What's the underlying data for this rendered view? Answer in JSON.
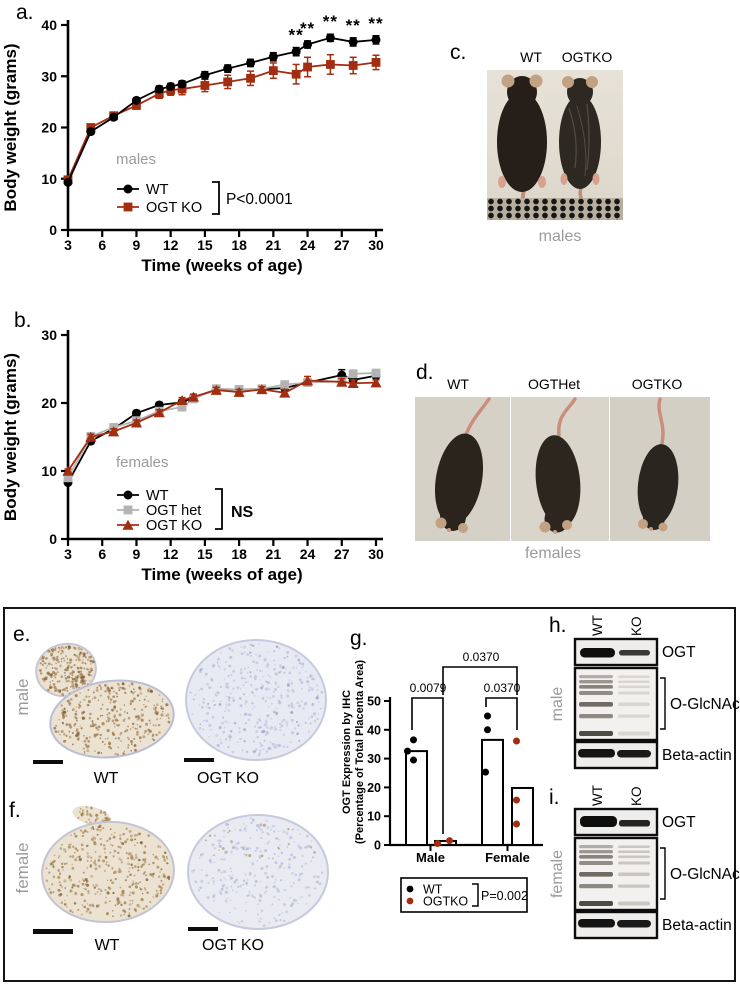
{
  "panel_labels": {
    "a": "a.",
    "b": "b.",
    "c": "c.",
    "d": "d.",
    "e": "e.",
    "f": "f.",
    "g": "g.",
    "h": "h.",
    "i": "i."
  },
  "colors": {
    "black": "#000000",
    "ko_red": "#A22D10",
    "het_gray": "#B3B3B3",
    "annotation_gray": "#9B9B9B"
  },
  "chart_data": [
    {
      "id": "a",
      "type": "line",
      "group_note": "males",
      "xlabel": "Time (weeks of age)",
      "ylabel": "Body weight (grams)",
      "xlim": [
        3,
        30
      ],
      "ylim": [
        0,
        40
      ],
      "xticks": [
        3,
        6,
        9,
        12,
        15,
        18,
        21,
        24,
        27,
        30
      ],
      "yticks": [
        0,
        10,
        20,
        30,
        40
      ],
      "x": [
        3,
        5,
        7,
        9,
        11,
        12,
        13,
        15,
        17,
        19,
        21,
        23,
        24,
        26,
        28,
        30
      ],
      "series": [
        {
          "name": "WT",
          "marker": "circle",
          "color": "#000000",
          "values": [
            9.3,
            19.2,
            22.0,
            25.3,
            27.5,
            28.0,
            28.5,
            30.2,
            31.5,
            32.6,
            33.8,
            34.8,
            36.2,
            37.5,
            36.7,
            37.1
          ],
          "err": [
            0.4,
            0.5,
            0.5,
            0.5,
            0.6,
            0.6,
            0.6,
            0.7,
            0.7,
            0.7,
            0.8,
            0.8,
            0.7,
            0.7,
            0.8,
            0.8
          ]
        },
        {
          "name": "OGT KO",
          "marker": "square",
          "color": "#A22D10",
          "values": [
            9.8,
            20.0,
            22.3,
            24.3,
            26.6,
            27.3,
            27.5,
            28.2,
            28.9,
            29.6,
            31.1,
            30.4,
            31.8,
            32.3,
            32.1,
            32.7
          ],
          "err": [
            0.4,
            0.6,
            0.6,
            0.7,
            0.9,
            1.0,
            1.1,
            1.2,
            1.3,
            1.4,
            1.5,
            1.9,
            1.9,
            1.9,
            1.6,
            1.4
          ]
        }
      ],
      "significance": {
        "symbol": "**",
        "weeks": [
          23,
          24,
          26,
          28,
          30
        ]
      },
      "comparison_label": "P<0.0001"
    },
    {
      "id": "b",
      "type": "line",
      "group_note": "females",
      "xlabel": "Time (weeks of age)",
      "ylabel": "Body weight (grams)",
      "xlim": [
        3,
        30
      ],
      "ylim": [
        0,
        30
      ],
      "xticks": [
        3,
        6,
        9,
        12,
        15,
        18,
        21,
        24,
        27,
        30
      ],
      "yticks": [
        0,
        10,
        20,
        30
      ],
      "x": [
        3,
        5,
        7,
        9,
        11,
        13,
        14,
        16,
        18,
        20,
        22,
        24,
        27,
        28,
        30
      ],
      "series": [
        {
          "name": "WT",
          "marker": "circle",
          "color": "#000000",
          "values": [
            8.3,
            14.4,
            16.2,
            18.5,
            19.7,
            20.1,
            20.8,
            22.0,
            22.0,
            22.0,
            22.2,
            23.0,
            24.1,
            23.4,
            24.0
          ],
          "err": [
            0.3,
            0.4,
            0.4,
            0.4,
            0.4,
            0.4,
            0.4,
            0.4,
            0.4,
            0.4,
            0.4,
            0.5,
            0.8,
            0.5,
            0.5
          ]
        },
        {
          "name": "OGT het",
          "marker": "square",
          "color": "#B3B3B3",
          "values": [
            9.0,
            15.1,
            16.4,
            17.4,
            18.8,
            19.4,
            20.6,
            22.1,
            22.0,
            22.1,
            22.7,
            23.0,
            23.2,
            24.3,
            24.4
          ],
          "err": [
            0.3,
            0.3,
            0.3,
            0.4,
            0.4,
            0.4,
            0.4,
            0.4,
            0.4,
            0.4,
            0.4,
            0.5,
            0.5,
            0.5,
            0.5
          ]
        },
        {
          "name": "OGT KO",
          "marker": "triangle",
          "color": "#A22D10",
          "values": [
            10.0,
            15.0,
            15.8,
            17.1,
            18.6,
            20.4,
            20.9,
            21.9,
            21.6,
            22.0,
            21.5,
            23.3,
            23.1,
            22.9,
            23.0
          ],
          "err": [
            0.3,
            0.4,
            0.4,
            0.4,
            0.4,
            0.4,
            0.4,
            0.4,
            0.4,
            0.4,
            0.5,
            0.6,
            0.5,
            0.5,
            0.4
          ]
        }
      ],
      "comparison_label": "NS"
    },
    {
      "id": "g",
      "type": "bar",
      "ylabel_line1": "OGT Expression by IHC",
      "ylabel_line2": "(Percentage of Total Placenta Area)",
      "ylim": [
        0,
        50
      ],
      "yticks": [
        0,
        10,
        20,
        30,
        40,
        50
      ],
      "categories": [
        "Male",
        "Female"
      ],
      "series": [
        {
          "name": "WT",
          "color": "#000000",
          "bar_values": [
            32.6,
            36.5
          ],
          "points": [
            [
              36.5,
              32.6,
              29.5
            ],
            [
              44.8,
              40.0,
              25.3
            ]
          ]
        },
        {
          "name": "OGTKO",
          "color": "#A22D10",
          "bar_values": [
            1.4,
            19.8
          ],
          "points": [
            [
              0.5,
              1.5
            ],
            [
              36.1,
              15.6,
              7.3
            ]
          ]
        }
      ],
      "comparisons": [
        {
          "pair": "Male WT vs Male OGTKO",
          "label": "0.0079"
        },
        {
          "pair": "Female WT vs Female OGTKO",
          "label": "0.0370"
        },
        {
          "pair": "Male OGTKO vs Female OGTKO",
          "label": "0.0370"
        }
      ],
      "legend_p": "P=0.002"
    }
  ],
  "photos": {
    "c": {
      "lane_labels": [
        "WT",
        "OGTKO"
      ],
      "caption": "males"
    },
    "d": {
      "lane_labels": [
        "WT",
        "OGTHet",
        "OGTKO"
      ],
      "caption": "females"
    }
  },
  "histology": {
    "e": {
      "side_label": "male",
      "image_labels": [
        "WT",
        "OGT KO"
      ]
    },
    "f": {
      "side_label": "female",
      "image_labels": [
        "WT",
        "OGT KO"
      ]
    }
  },
  "blots": {
    "h": {
      "side_label": "male",
      "lanes": [
        "WT",
        "KO"
      ],
      "rows": [
        "OGT",
        "O-GlcNAc",
        "Beta-actin"
      ]
    },
    "i": {
      "side_label": "female",
      "lanes": [
        "WT",
        "KO"
      ],
      "rows": [
        "OGT",
        "O-GlcNAc",
        "Beta-actin"
      ]
    }
  }
}
